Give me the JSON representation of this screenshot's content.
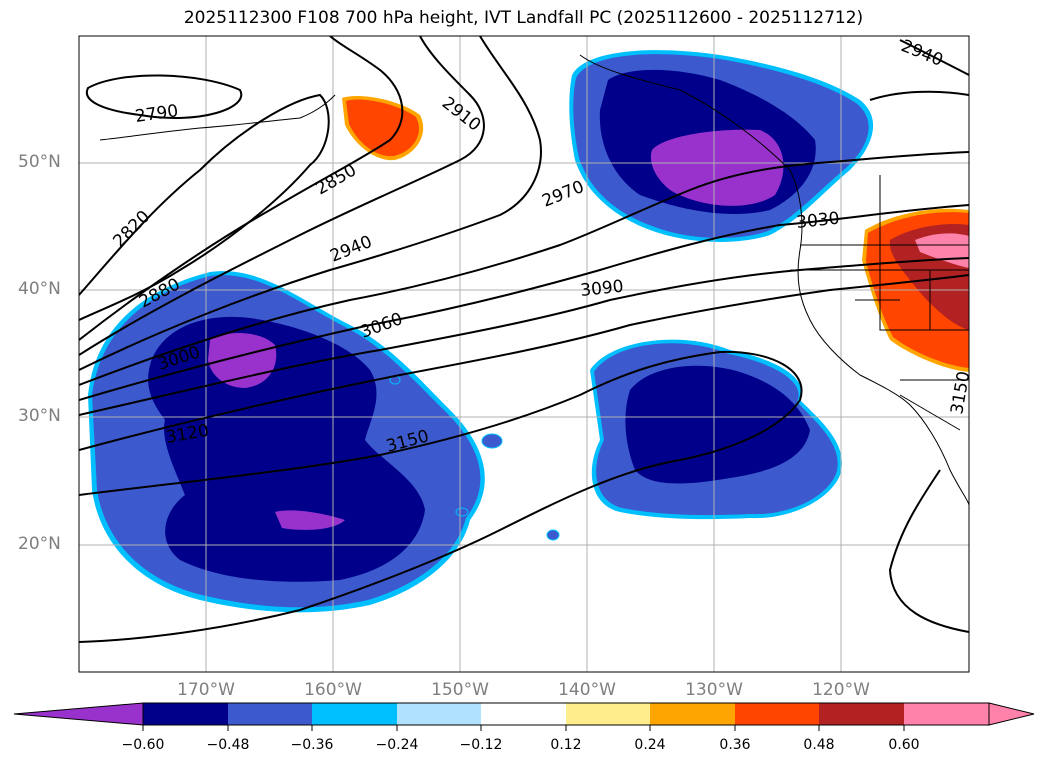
{
  "title": "2025112300 F108 700 hPa height, IVT Landfall PC (2025112600 - 2025112712)",
  "map": {
    "lat_labels": [
      "50°N",
      "40°N",
      "30°N",
      "20°N"
    ],
    "lon_labels": [
      "170°W",
      "160°W",
      "150°W",
      "140°W",
      "130°W",
      "120°W"
    ],
    "contour_labels": [
      "2790",
      "2820",
      "2850",
      "2880",
      "2910",
      "2940",
      "2940",
      "2970",
      "3000",
      "3030",
      "3060",
      "3090",
      "3120",
      "3150",
      "3150"
    ],
    "colors": {
      "neg_extreme": "#9932cc",
      "neg_strong": "#00008b",
      "neg_medium": "#3c5acd",
      "neg_light": "#00bfff",
      "pos_medium": "#ff4500",
      "pos_strong": "#b22222",
      "pos_extreme": "#ff82ab"
    }
  },
  "colorbar": {
    "ticks": [
      "−0.60",
      "−0.48",
      "−0.36",
      "−0.24",
      "−0.12",
      "0.12",
      "0.24",
      "0.36",
      "0.48",
      "0.60"
    ],
    "colors": [
      "#9932cc",
      "#00008b",
      "#3c5acd",
      "#00bfff",
      "#b0e2ff",
      "#ffffff",
      "#ffec8b",
      "#ffa500",
      "#ff4500",
      "#b22222",
      "#ff82ab"
    ]
  }
}
